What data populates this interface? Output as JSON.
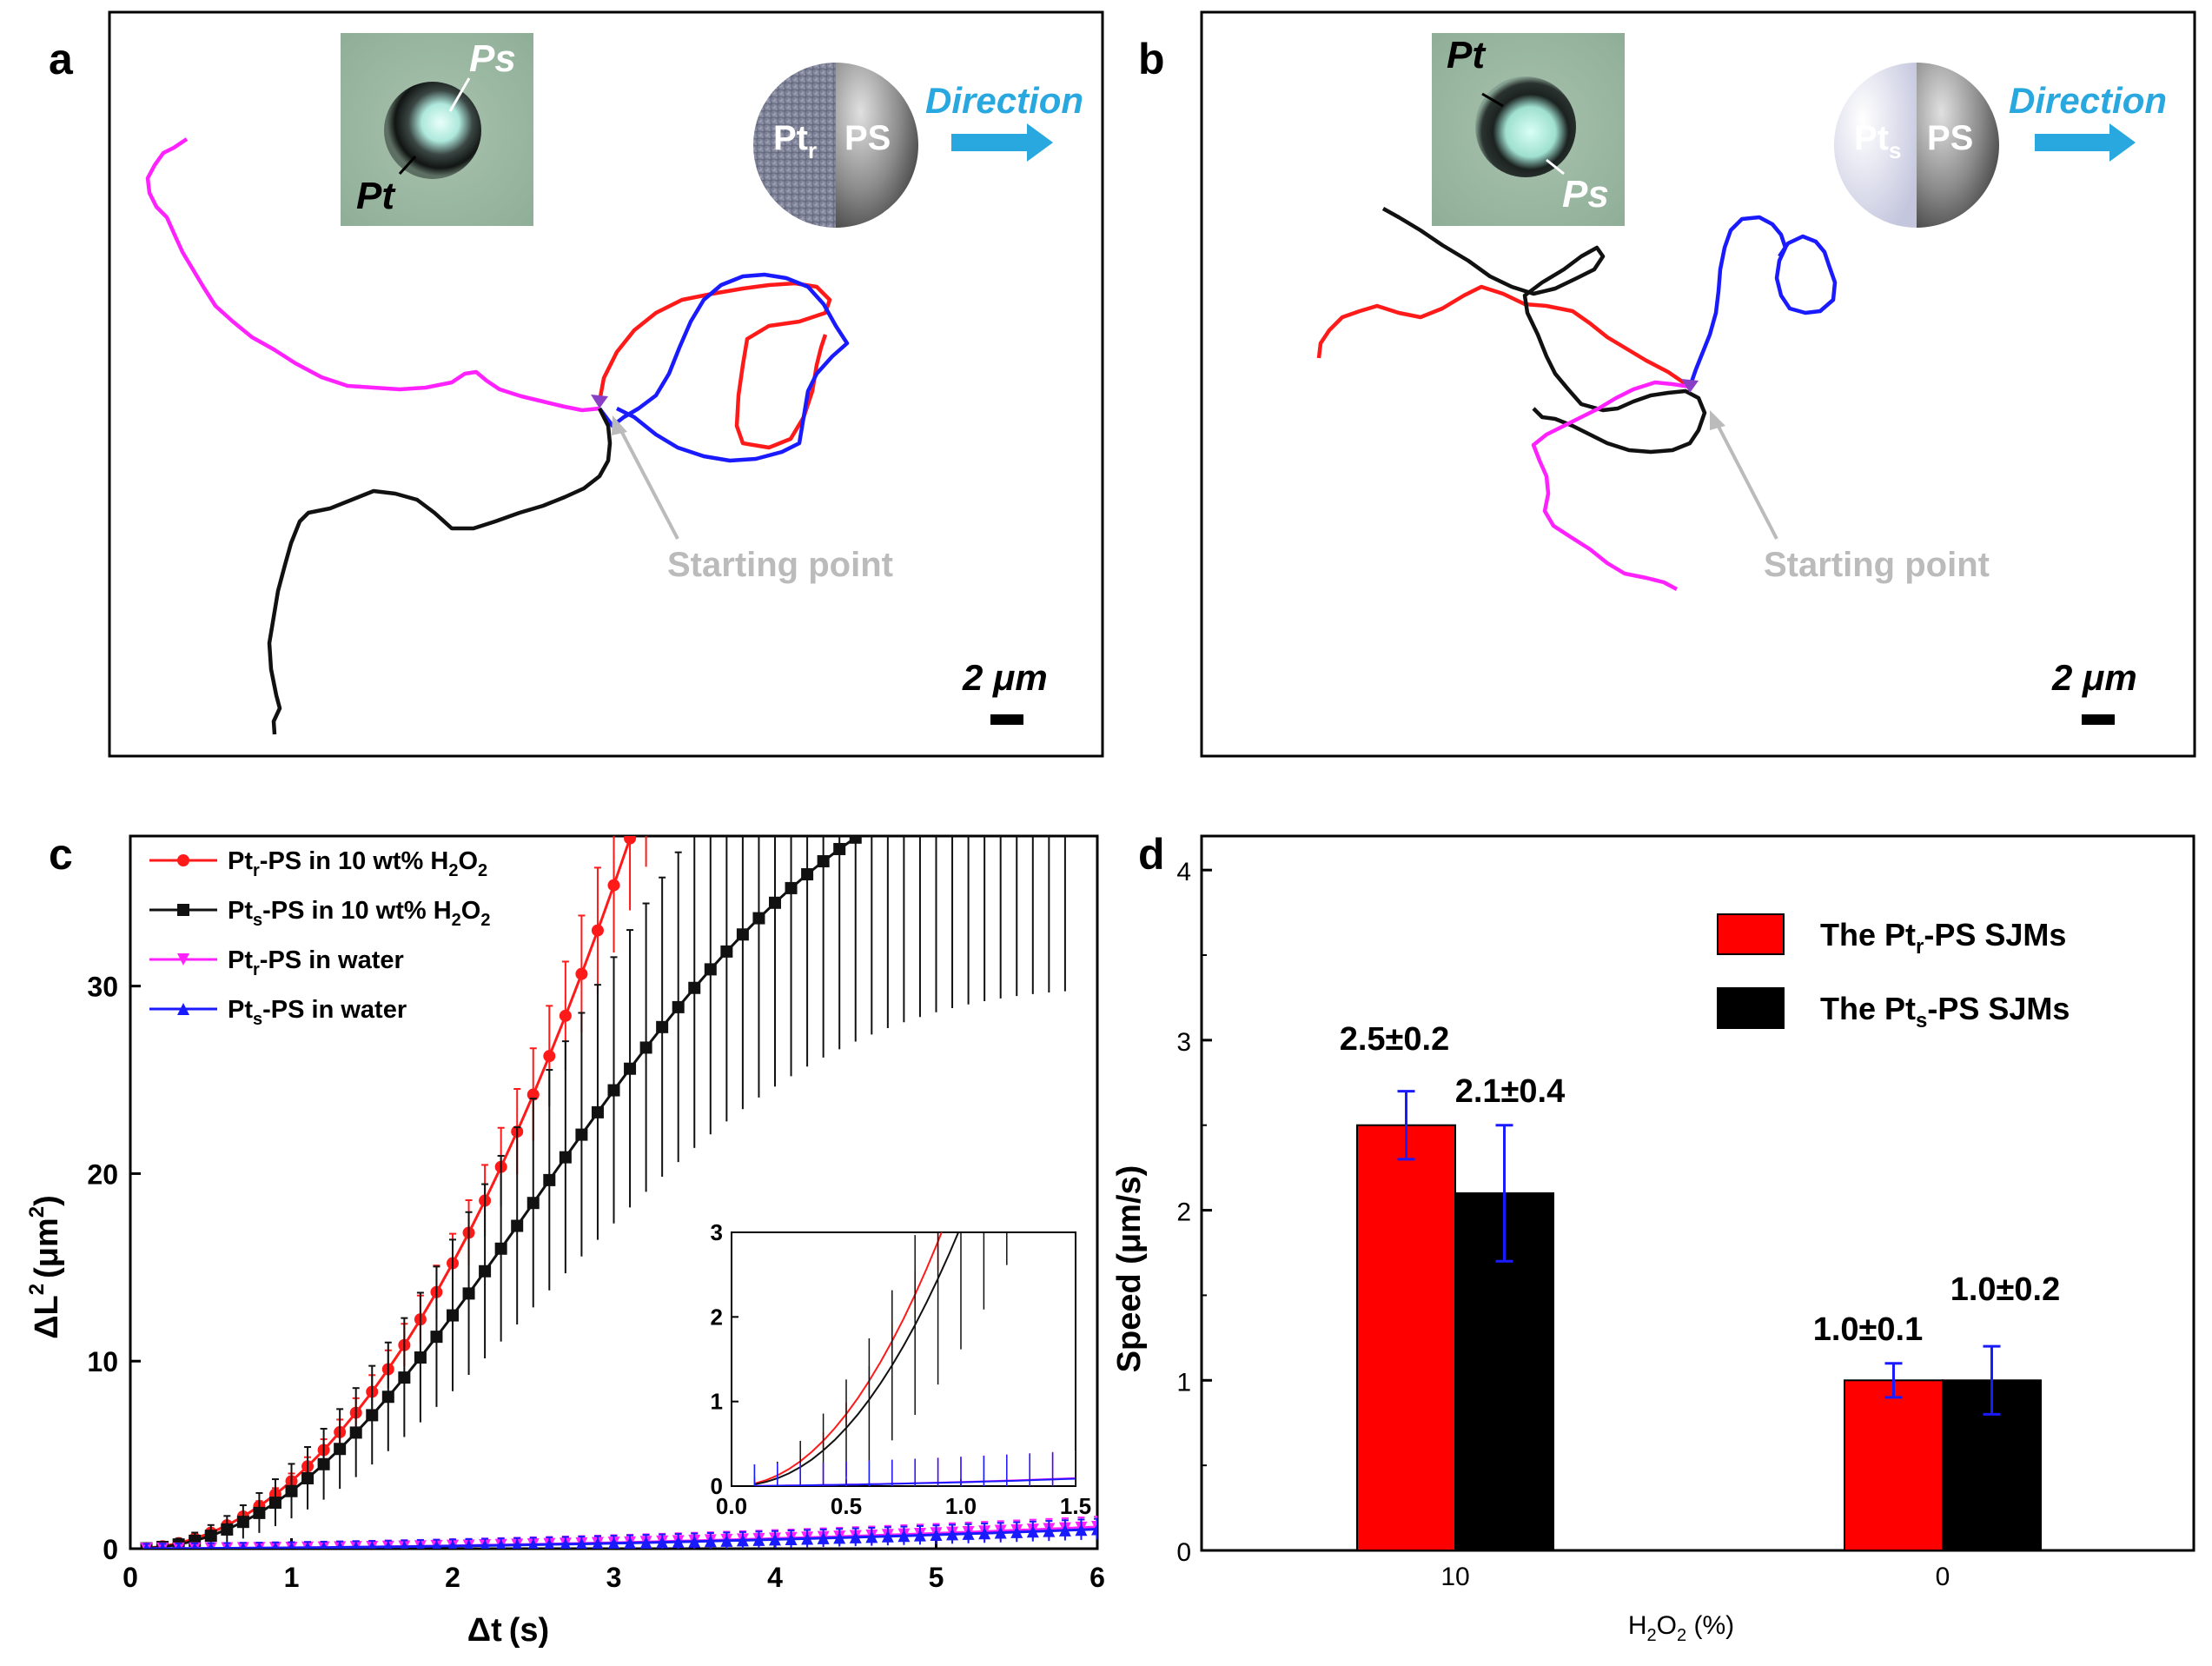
{
  "panels": {
    "a": {
      "letter": "a",
      "label_pt": "Pt",
      "label_ps": "Ps",
      "janus_left": "Pt",
      "janus_left_sub": "r",
      "janus_right": "PS",
      "direction": "Direction",
      "starting_point": "Starting point",
      "scale_bar": "2 μm"
    },
    "b": {
      "letter": "b",
      "label_pt": "Pt",
      "label_ps": "Ps",
      "janus_left": "Pt",
      "janus_left_sub": "s",
      "janus_right": "PS",
      "direction": "Direction",
      "starting_point": "Starting point",
      "scale_bar": "2 μm"
    },
    "c": {
      "letter": "c"
    },
    "d": {
      "letter": "d"
    }
  },
  "colors": {
    "red": "#ff1a1a",
    "black": "#111111",
    "magenta": "#ff22ff",
    "blue": "#1a1aff",
    "grey": "#bbbbbb",
    "direction": "#29a8e0",
    "bar_red": "#ff0000",
    "bar_black": "#000000",
    "errbar": "#1a1aff"
  },
  "chart_data": [
    {
      "type": "line",
      "panel": "c",
      "xlabel_main": "Δt",
      "xlabel_unit": "(s)",
      "ylabel_main": "ΔL",
      "ylabel_sup": "2",
      "ylabel_unit": "(μm",
      "ylabel_unit_sup": "2",
      "ylabel_close": ")",
      "xlim": [
        0,
        6
      ],
      "ylim": [
        0,
        38
      ],
      "xticks": [
        0,
        1,
        2,
        3,
        4,
        5,
        6
      ],
      "yticks": [
        0,
        10,
        20,
        30
      ],
      "series": [
        {
          "name": "Pt",
          "sub": "r",
          "suffix": "-PS in 10 wt%  H",
          "sub2": "2",
          "suffix2": "O",
          "sub3": "2",
          "color": "#ff1a1a",
          "marker": "circle",
          "coef": 3.6,
          "exp": 2.08,
          "err_frac": 0.1,
          "xmax": 3.2
        },
        {
          "name": "Pt",
          "sub": "s",
          "suffix": "-PS in 10 wt%  H",
          "sub2": "2",
          "suffix2": "O",
          "sub3": "2",
          "color": "#111111",
          "marker": "square",
          "sat": true,
          "xmax": 5.8
        },
        {
          "name": "Pt",
          "sub": "r",
          "suffix": "-PS in water",
          "sub2": "",
          "suffix2": "",
          "sub3": "",
          "color": "#ff22ff",
          "marker": "down",
          "lin": 0.18,
          "xmax": 6
        },
        {
          "name": "Pt",
          "sub": "s",
          "suffix": "-PS in water",
          "sub2": "",
          "suffix2": "",
          "sub3": "",
          "color": "#1a1aff",
          "marker": "up",
          "lin": 0.16,
          "xmax": 6
        }
      ],
      "inset": {
        "xlim": [
          0,
          1.5
        ],
        "ylim": [
          0,
          3
        ],
        "xticks": [
          "0.0",
          "0.5",
          "1.0",
          "1.5"
        ],
        "yticks": [
          "0",
          "1",
          "2",
          "3"
        ]
      }
    },
    {
      "type": "bar",
      "panel": "d",
      "categories": [
        "10",
        "0"
      ],
      "series": [
        {
          "name": "The Pt",
          "sub": "r",
          "suffix": "-PS SJMs",
          "values": [
            2.5,
            1.0
          ],
          "errors": [
            0.2,
            0.1
          ],
          "labels": [
            "2.5±0.2",
            "1.0±0.1"
          ]
        },
        {
          "name": "The Pt",
          "sub": "s",
          "suffix": "-PS SJMs",
          "values": [
            2.1,
            1.0
          ],
          "errors": [
            0.4,
            0.2
          ],
          "labels": [
            "2.1±0.4",
            "1.0±0.2"
          ]
        }
      ],
      "ylabel": "Speed (μm/s)",
      "xlabel_main": "H",
      "xlabel_sub1": "2",
      "xlabel_mid": "O",
      "xlabel_sub2": "2",
      "xlabel_unit": " (%)",
      "ylim": [
        0,
        4.2
      ],
      "yticks": [
        0,
        1,
        2,
        3,
        4
      ]
    }
  ]
}
